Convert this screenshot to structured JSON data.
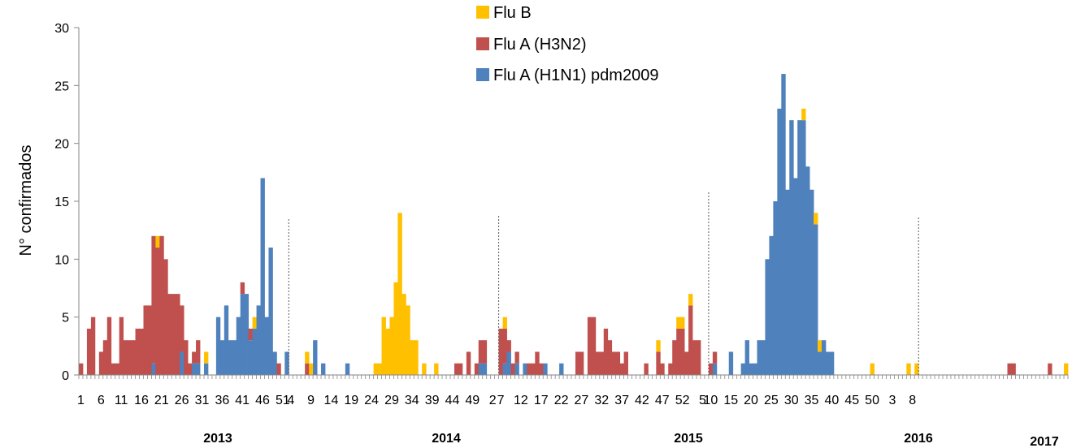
{
  "chart_data": {
    "type": "bar",
    "stacked": true,
    "title": "",
    "ylabel": "N° confirmados",
    "xlabel": "",
    "ylim": [
      0,
      30
    ],
    "yticks": [
      0,
      5,
      10,
      15,
      20,
      25,
      30
    ],
    "grid": false,
    "legend_position": "top-center",
    "series": [
      {
        "name": "Flu B",
        "color": "#FFC000",
        "values": [
          0,
          0,
          0,
          0,
          0,
          0,
          0,
          0,
          0,
          0,
          0,
          0,
          0,
          0,
          0,
          0,
          0,
          0,
          0,
          1,
          0,
          0,
          0,
          0,
          0,
          0,
          0,
          0,
          0,
          0,
          0,
          1,
          0,
          0,
          0,
          0,
          0,
          0,
          0,
          0,
          0,
          0,
          0,
          1,
          0,
          0,
          0,
          0,
          0,
          0,
          0,
          0,
          0,
          0,
          0,
          0,
          1,
          1,
          0,
          0,
          0,
          0,
          0,
          0,
          0,
          0,
          0,
          0,
          0,
          0,
          0,
          0,
          0,
          1,
          1,
          5,
          4,
          5,
          8,
          14,
          7,
          6,
          3,
          3,
          0,
          1,
          0,
          0,
          1,
          0,
          0,
          0,
          0,
          0,
          0,
          0,
          0,
          0,
          0,
          0,
          0,
          0,
          0,
          0,
          0,
          1,
          0,
          0,
          0,
          0,
          0,
          0,
          0,
          0,
          0,
          0,
          0,
          0,
          0,
          0,
          0,
          0,
          0,
          0,
          0,
          0,
          0,
          0,
          0,
          0,
          0,
          0,
          0,
          0,
          0,
          0,
          0,
          0,
          0,
          0,
          0,
          0,
          0,
          1,
          0,
          0,
          0,
          0,
          1,
          1,
          0,
          1,
          0,
          0,
          0,
          0,
          0,
          0,
          0,
          0,
          0,
          0,
          0,
          0,
          0,
          0,
          0,
          0,
          0,
          0,
          0,
          0,
          0,
          0,
          0,
          0,
          0,
          0,
          0,
          1,
          0,
          0,
          1,
          1,
          0,
          0,
          0,
          0,
          0,
          0,
          0,
          0,
          0,
          0,
          0,
          0,
          1,
          0,
          0,
          0,
          0,
          0,
          0,
          0,
          0,
          1,
          0,
          1,
          0,
          0,
          0,
          0,
          0,
          0,
          0,
          0,
          0,
          0,
          0,
          0,
          0,
          0,
          0,
          0,
          0,
          0,
          0,
          0,
          0,
          0,
          0,
          0,
          0,
          0,
          0,
          0,
          0,
          0,
          0,
          0,
          0,
          0,
          0,
          0,
          1
        ]
      },
      {
        "name": "Flu A (H3N2)",
        "color": "#C0504D",
        "values": [
          1,
          0,
          4,
          5,
          0,
          2,
          3,
          5,
          1,
          1,
          5,
          3,
          3,
          3,
          4,
          4,
          6,
          6,
          11,
          11,
          12,
          10,
          7,
          7,
          7,
          4,
          3,
          1,
          1,
          2,
          0,
          0,
          0,
          0,
          0,
          0,
          0,
          0,
          0,
          0,
          1,
          0,
          1,
          0,
          0,
          0,
          0,
          0,
          0,
          1,
          0,
          0,
          0,
          0,
          0,
          0,
          1,
          0,
          0,
          0,
          0,
          0,
          0,
          0,
          0,
          0,
          0,
          0,
          0,
          0,
          0,
          0,
          0,
          0,
          0,
          0,
          0,
          0,
          0,
          0,
          0,
          0,
          0,
          0,
          0,
          0,
          0,
          0,
          0,
          0,
          0,
          0,
          0,
          1,
          1,
          0,
          2,
          0,
          1,
          2,
          2,
          0,
          0,
          0,
          4,
          3,
          1,
          1,
          1,
          0,
          0,
          1,
          1,
          2,
          1,
          0,
          0,
          0,
          0,
          0,
          0,
          0,
          0,
          2,
          2,
          0,
          5,
          5,
          2,
          2,
          4,
          3,
          2,
          2,
          1,
          2,
          0,
          0,
          0,
          0,
          1,
          0,
          0,
          2,
          1,
          0,
          1,
          3,
          4,
          4,
          2,
          6,
          3,
          3,
          0,
          0,
          1,
          1,
          0,
          0,
          0,
          0,
          0,
          0,
          0,
          0,
          0,
          0,
          0,
          0,
          0,
          0,
          0,
          0,
          0,
          0,
          0,
          0,
          0,
          0,
          0,
          0,
          0,
          0,
          0,
          0,
          0,
          0,
          0,
          0,
          0,
          0,
          0,
          0,
          0,
          0,
          0,
          0,
          0,
          0,
          0,
          0,
          0,
          0,
          0,
          0,
          0,
          0,
          0,
          0,
          0,
          0,
          0,
          0,
          0,
          0,
          0,
          0,
          0,
          0,
          0,
          0,
          0,
          0,
          0,
          0,
          0,
          0,
          0,
          0,
          1,
          1,
          0,
          0,
          0,
          0,
          0,
          0,
          0,
          0,
          1
        ]
      },
      {
        "name": "Flu A (H1N1) pdm2009",
        "color": "#4F81BD",
        "values": [
          0,
          0,
          0,
          0,
          0,
          0,
          0,
          0,
          0,
          0,
          0,
          0,
          0,
          0,
          0,
          0,
          0,
          0,
          1,
          0,
          0,
          0,
          0,
          0,
          0,
          2,
          0,
          0,
          1,
          1,
          0,
          1,
          0,
          0,
          5,
          3,
          6,
          3,
          3,
          5,
          7,
          7,
          3,
          4,
          6,
          17,
          5,
          11,
          2,
          0,
          0,
          2,
          0,
          0,
          0,
          0,
          0,
          0,
          3,
          0,
          1,
          0,
          0,
          0,
          0,
          0,
          1,
          0,
          0,
          0,
          0,
          0,
          0,
          0,
          0,
          0,
          0,
          0,
          0,
          0,
          0,
          0,
          0,
          0,
          0,
          0,
          0,
          0,
          0,
          0,
          0,
          0,
          0,
          0,
          0,
          0,
          0,
          0,
          0,
          1,
          1,
          0,
          0,
          0,
          0,
          1,
          2,
          0,
          1,
          0,
          1,
          0,
          0,
          0,
          0,
          1,
          0,
          0,
          0,
          1,
          0,
          0,
          0,
          0,
          0,
          0,
          0,
          0,
          0,
          0,
          0,
          0,
          0,
          0,
          0,
          0,
          0,
          0,
          0,
          0,
          0,
          0,
          0,
          0,
          0,
          0,
          0,
          0,
          0,
          0,
          0,
          0,
          0,
          0,
          0,
          0,
          0,
          1,
          0,
          0,
          0,
          2,
          0,
          0,
          1,
          3,
          1,
          1,
          3,
          3,
          10,
          12,
          15,
          23,
          26,
          16,
          22,
          17,
          22,
          22,
          18,
          16,
          13,
          2,
          3,
          2,
          2,
          0,
          0,
          0,
          0,
          0,
          0,
          0,
          0,
          0,
          0,
          0,
          0,
          0,
          0,
          0,
          0,
          0,
          0,
          0,
          0,
          0,
          0,
          0,
          0,
          0,
          0,
          0,
          0,
          0,
          0,
          0,
          0,
          0,
          0,
          0,
          0,
          0,
          0,
          0,
          0,
          0,
          0,
          0,
          0,
          0,
          0,
          0,
          0,
          0,
          0,
          0,
          0,
          0,
          0,
          0,
          0,
          0,
          0,
          0,
          0,
          0,
          0,
          0,
          0,
          0
        ]
      }
    ],
    "week_tick_labels": [
      "1",
      "6",
      "11",
      "16",
      "21",
      "26",
      "31",
      "36",
      "41",
      "46",
      "51",
      "4",
      "9",
      "14",
      "19",
      "24",
      "29",
      "34",
      "39",
      "44",
      "49",
      "2",
      "7",
      "12",
      "17",
      "22",
      "27",
      "32",
      "37",
      "42",
      "47",
      "52",
      "5",
      "10",
      "15",
      "20",
      "25",
      "30",
      "35",
      "40",
      "45",
      "50",
      "3",
      "8"
    ],
    "year_labels": [
      "2013",
      "2014",
      "2015",
      "2016",
      "2017"
    ]
  }
}
